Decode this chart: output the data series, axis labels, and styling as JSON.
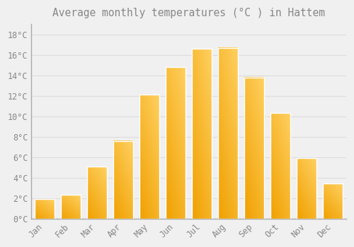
{
  "title": "Average monthly temperatures (°C ) in Hattem",
  "months": [
    "Jan",
    "Feb",
    "Mar",
    "Apr",
    "May",
    "Jun",
    "Jul",
    "Aug",
    "Sep",
    "Oct",
    "Nov",
    "Dec"
  ],
  "temperatures": [
    1.9,
    2.3,
    5.1,
    7.6,
    12.1,
    14.8,
    16.6,
    16.7,
    13.8,
    10.3,
    5.9,
    3.4
  ],
  "bar_color_dark": "#F0A000",
  "bar_color_light": "#FFD060",
  "bar_edge_color": "#FFFFFF",
  "background_color": "#F0F0F0",
  "grid_color": "#DDDDDD",
  "text_color": "#888888",
  "spine_color": "#AAAAAA",
  "ylim": [
    0,
    19
  ],
  "yticks": [
    0,
    2,
    4,
    6,
    8,
    10,
    12,
    14,
    16,
    18
  ],
  "ytick_labels": [
    "0°C",
    "2°C",
    "4°C",
    "6°C",
    "8°C",
    "10°C",
    "12°C",
    "14°C",
    "16°C",
    "18°C"
  ],
  "title_fontsize": 10.5,
  "tick_fontsize": 8.5,
  "font_family": "monospace",
  "bar_width": 0.75
}
